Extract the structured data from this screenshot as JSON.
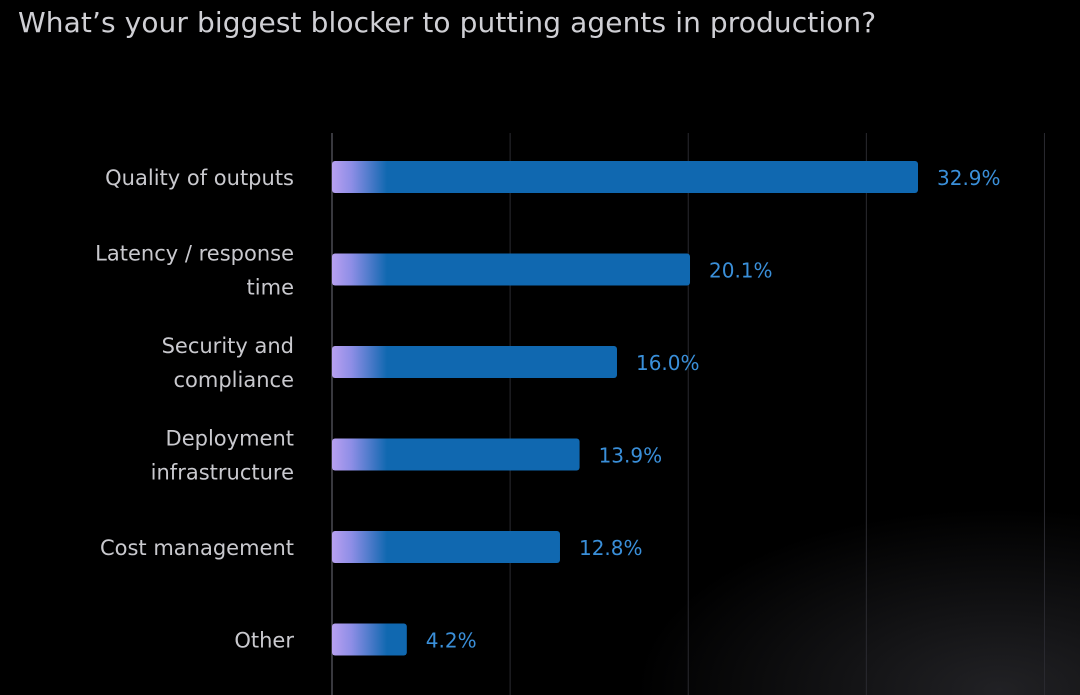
{
  "chart_data": {
    "type": "bar",
    "orientation": "horizontal",
    "title": "What’s your biggest blocker to putting agents in production?",
    "categories": [
      [
        "Quality of outputs"
      ],
      [
        "Latency / response",
        "time"
      ],
      [
        "Security and",
        "compliance"
      ],
      [
        "Deployment",
        "infrastructure"
      ],
      [
        "Cost management"
      ],
      [
        "Other"
      ]
    ],
    "values": [
      32.9,
      20.1,
      16.0,
      13.9,
      12.8,
      4.2
    ],
    "value_labels": [
      "32.9%",
      "20.1%",
      "16.0%",
      "13.9%",
      "12.8%",
      "4.2%"
    ],
    "xlim": [
      0,
      40
    ],
    "grid": true,
    "xlabel": "",
    "ylabel": ""
  },
  "colors": {
    "bar": "#1068b0",
    "bar_start": "#b8a0f0",
    "value_text": "#3a8fd9",
    "grid": "#2a2a30",
    "axis": "#4a4a52"
  }
}
